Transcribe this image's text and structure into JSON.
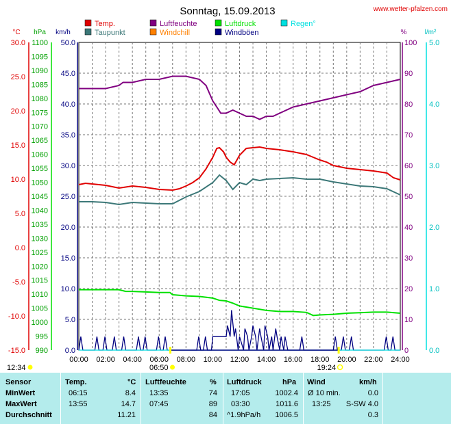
{
  "title": "Sonntag, 15.09.2013",
  "site": "www.wetter-pfalzen.com",
  "legend": [
    {
      "label": "Temp.",
      "color": "#e00000"
    },
    {
      "label": "Luftfeuchte",
      "color": "#800080"
    },
    {
      "label": "Luftdruck",
      "color": "#00e000"
    },
    {
      "label": "Regen°",
      "color": "#00e0e0"
    },
    {
      "label": "Taupunkt",
      "color": "#3c7878"
    },
    {
      "label": "Windchill",
      "color": "#ff8000"
    },
    {
      "label": "Windböen",
      "color": "#000080"
    }
  ],
  "axes": {
    "temp_unit": "°C",
    "pressure_unit": "hPa",
    "wind_unit": "km/h",
    "humidity_unit": "%",
    "rain_unit": "l/m²",
    "temp_ticks": [
      "30.0",
      "25.0",
      "20.0",
      "15.0",
      "10.0",
      "5.0",
      "0.0",
      "-5.0",
      "-10.0",
      "-15.0"
    ],
    "pressure_ticks": [
      "1100",
      "1095",
      "1090",
      "1085",
      "1080",
      "1075",
      "1070",
      "1065",
      "1060",
      "1055",
      "1050",
      "1045",
      "1040",
      "1035",
      "1030",
      "1025",
      "1020",
      "1015",
      "1010",
      "1005",
      "1000",
      "995",
      "990"
    ],
    "wind_ticks": [
      "50.0",
      "45.0",
      "40.0",
      "35.0",
      "30.0",
      "25.0",
      "20.0",
      "15.0",
      "10.0",
      "5.0",
      "0.0"
    ],
    "humidity_ticks": [
      "100",
      "90",
      "80",
      "70",
      "60",
      "50",
      "40",
      "30",
      "20",
      "10",
      "0"
    ],
    "rain_ticks": [
      "5.0",
      "4.0",
      "3.0",
      "2.0",
      "1.0",
      "0.0"
    ],
    "time_ticks": [
      "00:00",
      "02:00",
      "04:00",
      "06:00",
      "08:00",
      "10:00",
      "12:00",
      "14:00",
      "16:00",
      "18:00",
      "20:00",
      "22:00",
      "24:00"
    ]
  },
  "sun": {
    "moonrise": "12:34",
    "sunrise": "06:50",
    "sunset": "19:24"
  },
  "colors": {
    "temp": "#e00000",
    "dew": "#3c7878",
    "humidity": "#800080",
    "pressure": "#00e000",
    "wind": "#000080",
    "rain": "#00e0e0",
    "sun": "#ffff00"
  },
  "chart_data": {
    "type": "line",
    "title": "Sonntag, 15.09.2013",
    "x_unit": "hours",
    "xlim": [
      0,
      24
    ],
    "series": [
      {
        "name": "Temp.",
        "axis": "°C",
        "ylim": [
          -15,
          30
        ],
        "x": [
          0,
          0.5,
          1,
          2,
          3,
          4,
          5,
          6,
          7,
          7.5,
          8,
          8.5,
          9,
          9.5,
          10,
          10.3,
          10.5,
          10.8,
          11,
          11.3,
          11.6,
          12,
          12.5,
          13,
          13.5,
          14,
          15,
          16,
          17,
          17.5,
          18,
          18.5,
          19,
          20,
          21,
          22,
          23,
          23.5,
          24
        ],
        "y": [
          9.2,
          9.4,
          9.3,
          9.1,
          8.7,
          9.0,
          8.8,
          8.5,
          8.4,
          8.6,
          9.0,
          9.5,
          10.2,
          11.5,
          13.2,
          14.5,
          14.6,
          14.0,
          13.2,
          12.5,
          12.1,
          13.5,
          14.5,
          14.6,
          14.7,
          14.5,
          14.3,
          14.0,
          13.6,
          13.2,
          12.8,
          12.5,
          12.0,
          11.6,
          11.4,
          11.2,
          10.9,
          10.2,
          9.9
        ]
      },
      {
        "name": "Taupunkt",
        "axis": "°C",
        "ylim": [
          -15,
          30
        ],
        "x": [
          0,
          1,
          2,
          3,
          4,
          5,
          6,
          7,
          8,
          9,
          10,
          10.5,
          11,
          11.5,
          12,
          12.5,
          13,
          13.5,
          14,
          15,
          16,
          17,
          18,
          18.5,
          19,
          20,
          21,
          22,
          23,
          24
        ],
        "y": [
          6.7,
          6.7,
          6.6,
          6.3,
          6.6,
          6.5,
          6.4,
          6.4,
          7.4,
          8.2,
          9.5,
          10.6,
          9.8,
          8.5,
          9.5,
          9.2,
          10.0,
          9.8,
          10.0,
          10.1,
          10.2,
          10.0,
          10.0,
          9.8,
          9.6,
          9.3,
          9.0,
          8.9,
          8.6,
          7.7
        ]
      },
      {
        "name": "Luftfeuchte",
        "axis": "%",
        "ylim": [
          0,
          100
        ],
        "x": [
          0,
          0.5,
          2,
          3,
          3.3,
          4,
          5,
          6,
          7,
          8,
          9,
          9.5,
          10,
          10.3,
          10.6,
          11,
          11.5,
          12,
          12.5,
          13,
          13.5,
          14,
          14.5,
          15,
          16,
          17,
          18,
          19,
          20,
          21,
          22,
          23,
          24
        ],
        "y": [
          85,
          85,
          85,
          86,
          87,
          87,
          88,
          88,
          89,
          89,
          88,
          86,
          81,
          79,
          77,
          77,
          78,
          77,
          76,
          76,
          75,
          76,
          76,
          77,
          79,
          80,
          81,
          82,
          83,
          84,
          86,
          87,
          88
        ]
      },
      {
        "name": "Luftdruck",
        "axis": "hPa",
        "ylim": [
          990,
          1100
        ],
        "x": [
          0,
          1,
          2,
          3,
          3.5,
          4,
          5,
          6,
          6.8,
          7,
          8,
          9,
          10,
          10.5,
          11,
          11.5,
          12,
          13,
          14,
          15,
          16,
          17,
          17.5,
          18,
          19,
          20,
          21,
          22,
          23,
          24
        ],
        "y": [
          1011.6,
          1011.6,
          1011.6,
          1011.6,
          1011.0,
          1011.0,
          1010.8,
          1010.6,
          1010.6,
          1009.8,
          1009.4,
          1009.2,
          1008.6,
          1007.8,
          1007.6,
          1006.8,
          1005.8,
          1005.0,
          1004.2,
          1003.8,
          1003.8,
          1003.5,
          1002.4,
          1002.6,
          1002.8,
          1003.2,
          1003.4,
          1003.6,
          1003.6,
          1003.2
        ]
      },
      {
        "name": "Windböen",
        "axis": "km/h",
        "ylim": [
          0,
          50
        ],
        "x": [
          0,
          0.15,
          0.3,
          1.2,
          1.35,
          1.5,
          1.8,
          1.95,
          2.1,
          2.5,
          2.65,
          2.8,
          3.2,
          3.35,
          3.5,
          4.3,
          4.45,
          4.6,
          4.8,
          4.95,
          5.1,
          5.8,
          5.95,
          6.1,
          6.3,
          6.45,
          6.6,
          8.8,
          8.95,
          9.1,
          9.3,
          9.45,
          9.6,
          9.9,
          10,
          10.5,
          11,
          11.1,
          11.3,
          11.4,
          11.6,
          11.7,
          11.9,
          12.0,
          12.3,
          12.4,
          12.6,
          12.7,
          12.9,
          13.0,
          13.2,
          13.3,
          13.5,
          13.6,
          13.8,
          13.9,
          14.1,
          14.2,
          14.4,
          14.5,
          14.7,
          14.8,
          15.0,
          15.1,
          15.3,
          15.4,
          15.6,
          16.5,
          16.65,
          16.8,
          19.0,
          19.15,
          19.3,
          19.6,
          19.75,
          19.9,
          20.2,
          20.35,
          20.5,
          22.8,
          22.95,
          23.1,
          23.3,
          23.45,
          23.6,
          24
        ],
        "y": [
          0,
          2.2,
          0,
          0,
          2.2,
          0,
          0,
          2.2,
          0,
          0,
          2.2,
          0,
          0,
          2.2,
          0,
          0,
          2.2,
          0,
          0,
          2.2,
          0,
          0,
          2.2,
          0,
          0,
          2.2,
          0,
          0,
          2.2,
          0,
          0,
          2.2,
          0,
          0,
          2.2,
          2.2,
          2.2,
          4.0,
          2.2,
          6.5,
          2.2,
          3.5,
          0,
          2.2,
          0,
          3.5,
          2.2,
          0,
          2.2,
          4.0,
          2.2,
          0,
          3.5,
          2.2,
          0,
          4.0,
          2.2,
          0,
          2.2,
          0,
          3.5,
          2.2,
          0,
          2.2,
          0,
          2.2,
          0,
          0,
          2.2,
          0,
          0,
          2.2,
          0,
          0,
          2.2,
          0,
          0,
          2.2,
          0,
          0,
          2.2,
          0,
          0,
          2.2,
          0,
          0
        ]
      },
      {
        "name": "Regen°",
        "axis": "l/m²",
        "ylim": [
          0,
          5
        ],
        "x": [
          0,
          24
        ],
        "y": [
          0,
          0
        ]
      }
    ]
  },
  "stats": {
    "headers": {
      "sensor": "Sensor",
      "temp": "Temp.",
      "temp_unit": "°C",
      "hum": "Luftfeuchte",
      "hum_unit": "%",
      "press": "Luftdruck",
      "press_unit": "hPa",
      "wind": "Wind",
      "wind_unit": "km/h"
    },
    "rows": [
      {
        "label": "MinWert",
        "t_time": "06:15",
        "t_val": "8.4",
        "h_time": "13:35",
        "h_val": "74",
        "p_time": "17:05",
        "p_val": "1002.4",
        "w_time": "Ø 10 min.",
        "w_val": "0.0"
      },
      {
        "label": "MaxWert",
        "t_time": "13:55",
        "t_val": "14.7",
        "h_time": "07:45",
        "h_val": "89",
        "p_time": "03:30",
        "p_val": "1011.6",
        "w_time": "13:25",
        "w_val": "S-SW 4.0"
      },
      {
        "label": "Durchschnitt",
        "t_time": "",
        "t_val": "11.21",
        "h_time": "",
        "h_val": "84",
        "p_time": "^1.9hPa/h",
        "p_val": "1006.5",
        "w_time": "",
        "w_val": "0.3"
      }
    ]
  }
}
